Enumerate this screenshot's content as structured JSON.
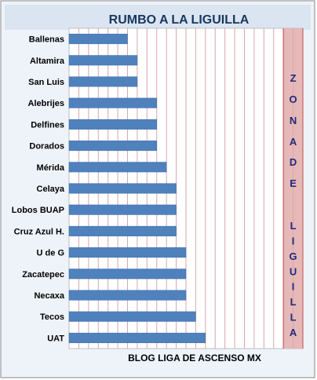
{
  "chart_data": {
    "type": "bar",
    "orientation": "horizontal",
    "title": "RUMBO A LA LIGUILLA",
    "footer": "BLOG LIGA DE ASCENSO MX",
    "zone_label": "ZONA DE LIGUILLA",
    "zone_letters": [
      "Z",
      "O",
      "N",
      "A",
      "D",
      "E",
      "L",
      "I",
      "G",
      "U",
      "I",
      "L",
      "L",
      "A"
    ],
    "categories": [
      "Ballenas",
      "Altamira",
      "San Luis",
      "Alebrijes",
      "Delfines",
      "Dorados",
      "Mérida",
      "Celaya",
      "Lobos BUAP",
      "Cruz Azul H.",
      "U de G",
      "Zacatepec",
      "Necaxa",
      "Tecos",
      "UAT"
    ],
    "values": [
      6,
      7,
      7,
      9,
      9,
      9,
      10,
      11,
      11,
      11,
      12,
      12,
      12,
      13,
      14
    ],
    "xlim": [
      0,
      24
    ],
    "zone_range": [
      22,
      24
    ],
    "grid": true,
    "colors": {
      "bar": "#4f81bd",
      "bar_edge": "#3a6aa6",
      "grid": "#d9a6ae",
      "zone_fill": "#e6b8b7",
      "zone_text": "#1f2a7a",
      "title_bg": "#dbe5f1",
      "title_text": "#17375e",
      "frame_bg": "#eef3fa",
      "plot_bg": "#ffffff"
    }
  }
}
